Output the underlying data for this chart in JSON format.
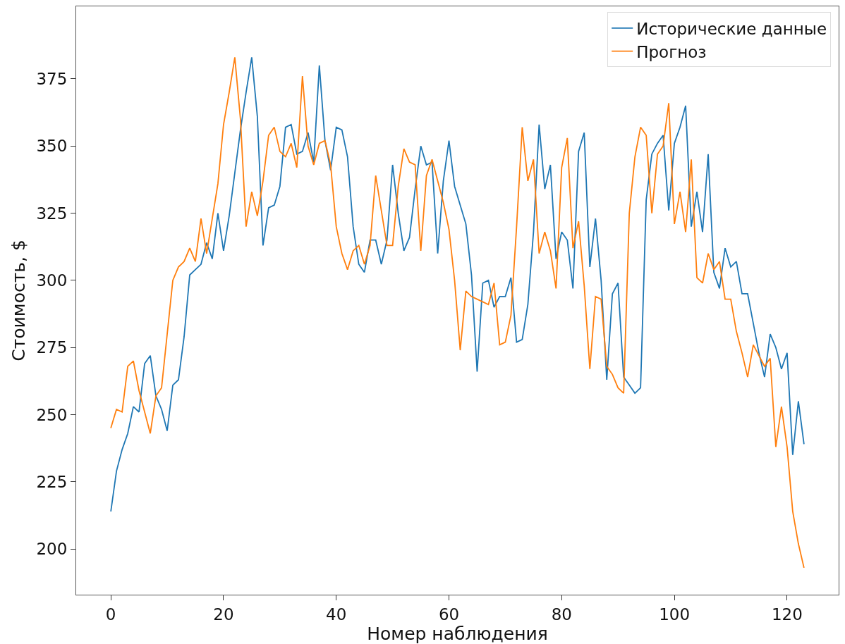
{
  "chart_data": {
    "type": "line",
    "xlabel": "Номер наблюдения",
    "ylabel": "Стоимость, $",
    "x": [
      0,
      1,
      2,
      3,
      4,
      5,
      6,
      7,
      8,
      9,
      10,
      11,
      12,
      13,
      14,
      15,
      16,
      17,
      18,
      19,
      20,
      21,
      22,
      23,
      24,
      25,
      26,
      27,
      28,
      29,
      30,
      31,
      32,
      33,
      34,
      35,
      36,
      37,
      38,
      39,
      40,
      41,
      42,
      43,
      44,
      45,
      46,
      47,
      48,
      49,
      50,
      51,
      52,
      53,
      54,
      55,
      56,
      57,
      58,
      59,
      60,
      61,
      62,
      63,
      64,
      65,
      66,
      67,
      68,
      69,
      70,
      71,
      72,
      73,
      74,
      75,
      76,
      77,
      78,
      79,
      80,
      81,
      82,
      83,
      84,
      85,
      86,
      87,
      88,
      89,
      90,
      91,
      92,
      93,
      94,
      95,
      96,
      97,
      98,
      99,
      100,
      101,
      102,
      103,
      104,
      105,
      106,
      107,
      108,
      109,
      110,
      111,
      112,
      113,
      114,
      115,
      116,
      117,
      118,
      119,
      120,
      121,
      122,
      123
    ],
    "series": [
      {
        "name": "Исторические данные",
        "color": "#1f77b4",
        "values": [
          214,
          229,
          237,
          243,
          253,
          251,
          269,
          272,
          257,
          252,
          244,
          261,
          263,
          279,
          302,
          304,
          306,
          314,
          308,
          325,
          311,
          324,
          340,
          356,
          370,
          383,
          361,
          313,
          327,
          328,
          335,
          357,
          358,
          347,
          348,
          355,
          344,
          380,
          352,
          341,
          357,
          356,
          346,
          320,
          306,
          303,
          315,
          315,
          306,
          315,
          343,
          325,
          311,
          316,
          334,
          350,
          343,
          344,
          310,
          337,
          352,
          335,
          328,
          321,
          302,
          266,
          299,
          300,
          290,
          294,
          294,
          301,
          277,
          278,
          291,
          318,
          358,
          334,
          343,
          308,
          318,
          315,
          297,
          348,
          355,
          305,
          323,
          300,
          263,
          295,
          299,
          264,
          261,
          258,
          260,
          330,
          347,
          351,
          354,
          326,
          351,
          357,
          365,
          320,
          333,
          318,
          347,
          303,
          297,
          312,
          305,
          307,
          295,
          295,
          284,
          273,
          264,
          280,
          275,
          267,
          273,
          235,
          255,
          239
        ]
      },
      {
        "name": "Прогноз",
        "color": "#ff7f0e",
        "values": [
          245,
          252,
          251,
          268,
          270,
          259,
          251,
          243,
          257,
          260,
          280,
          300,
          305,
          307,
          312,
          307,
          323,
          310,
          323,
          336,
          358,
          370,
          383,
          360,
          320,
          333,
          324,
          337,
          354,
          357,
          348,
          346,
          351,
          342,
          376,
          350,
          343,
          351,
          352,
          343,
          320,
          310,
          304,
          311,
          313,
          306,
          313,
          339,
          326,
          313,
          313,
          335,
          349,
          344,
          343,
          311,
          339,
          345,
          337,
          329,
          319,
          300,
          274,
          296,
          294,
          293,
          292,
          291,
          299,
          276,
          277,
          287,
          320,
          357,
          337,
          345,
          310,
          318,
          311,
          297,
          342,
          353,
          312,
          322,
          298,
          267,
          294,
          293,
          268,
          265,
          260,
          258,
          325,
          346,
          357,
          354,
          325,
          347,
          350,
          366,
          321,
          333,
          318,
          345,
          301,
          299,
          310,
          304,
          307,
          293,
          293,
          281,
          273,
          264,
          276,
          272,
          268,
          271,
          238,
          253,
          238,
          214,
          202,
          193
        ]
      }
    ],
    "xlim": [
      -6.15,
      129.15
    ],
    "ylim": [
      183,
      402
    ],
    "xticks": [
      0,
      20,
      40,
      60,
      80,
      100,
      120
    ],
    "yticks": [
      200,
      225,
      250,
      275,
      300,
      325,
      350,
      375
    ],
    "grid": false,
    "legend": "top right",
    "marker": "none",
    "line_style": "solid"
  }
}
